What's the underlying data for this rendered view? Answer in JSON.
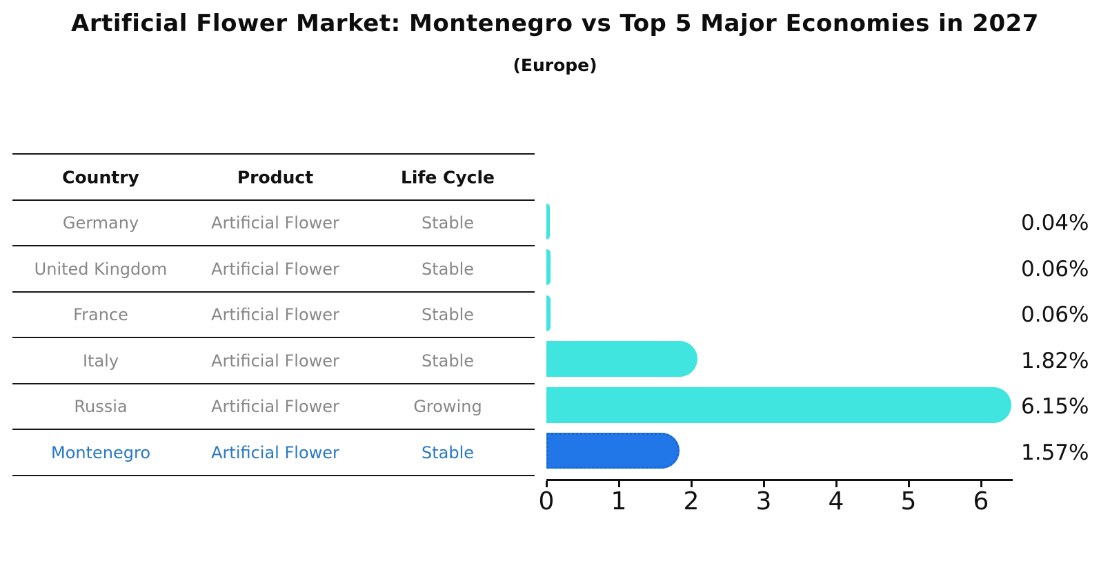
{
  "title": "Artificial Flower Market: Montenegro vs Top 5 Major Economies in 2027",
  "subtitle": "(Europe)",
  "table": {
    "headers": [
      "Country",
      "Product",
      "Life Cycle"
    ],
    "rows": [
      {
        "country": "Germany",
        "product": "Artificial Flower",
        "life_cycle": "Stable",
        "highlight": false
      },
      {
        "country": "United Kingdom",
        "product": "Artificial Flower",
        "life_cycle": "Stable",
        "highlight": false
      },
      {
        "country": "France",
        "product": "Artificial Flower",
        "life_cycle": "Stable",
        "highlight": false
      },
      {
        "country": "Italy",
        "product": "Artificial Flower",
        "life_cycle": "Stable",
        "highlight": false
      },
      {
        "country": "Russia",
        "product": "Artificial Flower",
        "life_cycle": "Growing",
        "highlight": false
      },
      {
        "country": "Montenegro",
        "product": "Artificial Flower",
        "life_cycle": "Stable",
        "highlight": true
      }
    ]
  },
  "chart_data": {
    "type": "bar",
    "orientation": "horizontal",
    "title": "Artificial Flower Market: Montenegro vs Top 5 Major Economies in 2027",
    "subtitle": "(Europe)",
    "categories": [
      "Germany",
      "United Kingdom",
      "France",
      "Italy",
      "Russia",
      "Montenegro"
    ],
    "values": [
      0.04,
      0.06,
      0.06,
      1.82,
      6.15,
      1.57
    ],
    "value_labels": [
      "0.04%",
      "0.06%",
      "0.06%",
      "1.82%",
      "6.15%",
      "1.57%"
    ],
    "xlabel": "",
    "ylabel": "",
    "xlim": [
      0,
      6.44
    ],
    "xticks": [
      0,
      1,
      2,
      3,
      4,
      5,
      6
    ],
    "grid": false,
    "legend": false,
    "highlight_index": 5
  },
  "colors": {
    "bar": "#40E5DF",
    "highlight_bar": "#2277E8",
    "highlight_border": "#1b66cc",
    "highlight_text": "#2878c8",
    "body_text": "#878787",
    "header_text": "#111111",
    "line": "#161616"
  }
}
